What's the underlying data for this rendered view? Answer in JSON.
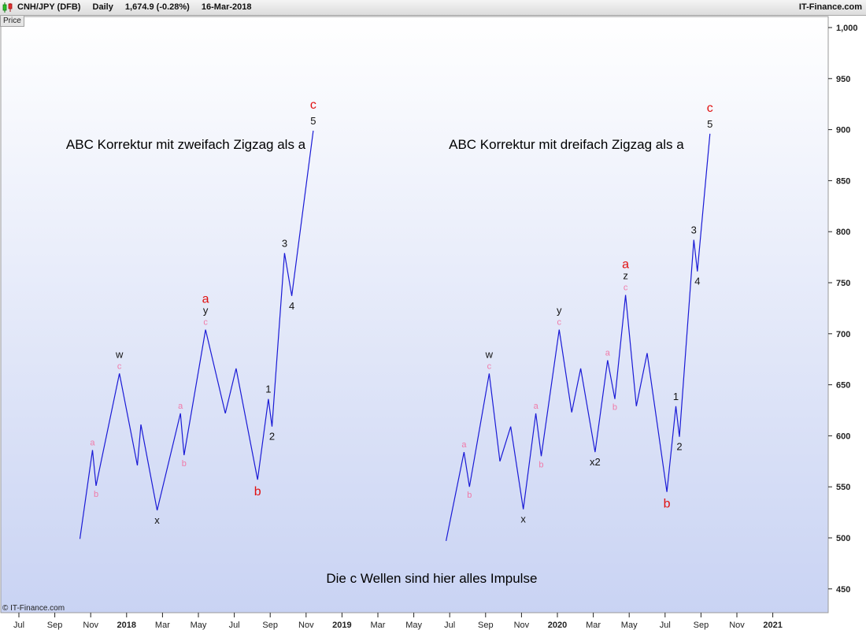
{
  "header": {
    "symbol": "CNH/JPY (DFB)",
    "timeframe": "Daily",
    "last_price": "1,674.9 (-0.28%)",
    "date": "16-Mar-2018",
    "brand": "IT-Finance.com"
  },
  "price_label": "Price",
  "copyright": "© IT-Finance.com",
  "colors": {
    "line": "#1a1ad6",
    "wave_red": "#e01010",
    "wave_pink": "#f07aa8",
    "wave_black": "#111111"
  },
  "chart_data": {
    "type": "line",
    "title": "",
    "xlabel": "",
    "ylabel": "Price",
    "ylim": [
      425,
      1025
    ],
    "y_ticks": [
      {
        "value": 1000,
        "label": "1,000"
      },
      {
        "value": 950,
        "label": "950"
      },
      {
        "value": 900,
        "label": "900"
      },
      {
        "value": 850,
        "label": "850"
      },
      {
        "value": 800,
        "label": "800"
      },
      {
        "value": 750,
        "label": "750"
      },
      {
        "value": 700,
        "label": "700"
      },
      {
        "value": 650,
        "label": "650"
      },
      {
        "value": 600,
        "label": "600"
      },
      {
        "value": 550,
        "label": "550"
      },
      {
        "value": 500,
        "label": "500"
      },
      {
        "value": 450,
        "label": "450"
      }
    ],
    "x_ticks": [
      {
        "month": 0,
        "label": "Jul",
        "bold": false
      },
      {
        "month": 2,
        "label": "Sep",
        "bold": false
      },
      {
        "month": 4,
        "label": "Nov",
        "bold": false
      },
      {
        "month": 6,
        "label": "2018",
        "bold": true
      },
      {
        "month": 8,
        "label": "Mar",
        "bold": false
      },
      {
        "month": 10,
        "label": "May",
        "bold": false
      },
      {
        "month": 12,
        "label": "Jul",
        "bold": false
      },
      {
        "month": 14,
        "label": "Sep",
        "bold": false
      },
      {
        "month": 16,
        "label": "Nov",
        "bold": false
      },
      {
        "month": 18,
        "label": "2019",
        "bold": true
      },
      {
        "month": 20,
        "label": "Mar",
        "bold": false
      },
      {
        "month": 22,
        "label": "May",
        "bold": false
      },
      {
        "month": 24,
        "label": "Jul",
        "bold": false
      },
      {
        "month": 26,
        "label": "Sep",
        "bold": false
      },
      {
        "month": 28,
        "label": "Nov",
        "bold": false
      },
      {
        "month": 30,
        "label": "2020",
        "bold": true
      },
      {
        "month": 32,
        "label": "Mar",
        "bold": false
      },
      {
        "month": 34,
        "label": "May",
        "bold": false
      },
      {
        "month": 36,
        "label": "Jul",
        "bold": false
      },
      {
        "month": 38,
        "label": "Sep",
        "bold": false
      },
      {
        "month": 40,
        "label": "Nov",
        "bold": false
      },
      {
        "month": 42,
        "label": "2021",
        "bold": true
      }
    ],
    "series": [
      {
        "points": [
          [
            3.4,
            499
          ],
          [
            4.1,
            586
          ],
          [
            4.3,
            551
          ],
          [
            5.6,
            661
          ],
          [
            6.6,
            571
          ],
          [
            6.8,
            611
          ],
          [
            7.7,
            527
          ],
          [
            9.0,
            622
          ],
          [
            9.2,
            581
          ],
          [
            10.4,
            704
          ],
          [
            11.5,
            622
          ],
          [
            12.1,
            666
          ],
          [
            13.3,
            557
          ],
          [
            13.9,
            636
          ],
          [
            14.1,
            609
          ],
          [
            14.8,
            779
          ],
          [
            15.2,
            737
          ],
          [
            16.4,
            899
          ]
        ],
        "labels": [
          {
            "text": "a",
            "x": 4.1,
            "y": 586,
            "pos": "above",
            "color": "pink"
          },
          {
            "text": "b",
            "x": 4.3,
            "y": 551,
            "pos": "below",
            "color": "pink"
          },
          {
            "text": "c",
            "x": 5.6,
            "y": 661,
            "pos": "above",
            "color": "pink"
          },
          {
            "text": "w",
            "x": 5.6,
            "y": 661,
            "pos": "above2",
            "color": "black"
          },
          {
            "text": "x",
            "x": 7.7,
            "y": 527,
            "pos": "below",
            "color": "black"
          },
          {
            "text": "a",
            "x": 9.0,
            "y": 622,
            "pos": "above",
            "color": "pink"
          },
          {
            "text": "b",
            "x": 9.2,
            "y": 581,
            "pos": "below",
            "color": "pink"
          },
          {
            "text": "c",
            "x": 10.4,
            "y": 704,
            "pos": "above",
            "color": "pink"
          },
          {
            "text": "y",
            "x": 10.4,
            "y": 704,
            "pos": "above2",
            "color": "black"
          },
          {
            "text": "a",
            "x": 10.4,
            "y": 704,
            "pos": "above3",
            "color": "red"
          },
          {
            "text": "b",
            "x": 13.3,
            "y": 557,
            "pos": "below",
            "color": "red"
          },
          {
            "text": "1",
            "x": 13.9,
            "y": 636,
            "pos": "above",
            "color": "black"
          },
          {
            "text": "2",
            "x": 14.1,
            "y": 609,
            "pos": "below",
            "color": "black"
          },
          {
            "text": "3",
            "x": 14.8,
            "y": 779,
            "pos": "above",
            "color": "black"
          },
          {
            "text": "4",
            "x": 15.2,
            "y": 737,
            "pos": "below",
            "color": "black"
          },
          {
            "text": "5",
            "x": 16.4,
            "y": 899,
            "pos": "above",
            "color": "black"
          },
          {
            "text": "c",
            "x": 16.4,
            "y": 899,
            "pos": "above2",
            "color": "red"
          }
        ]
      },
      {
        "points": [
          [
            23.8,
            497
          ],
          [
            24.8,
            584
          ],
          [
            25.1,
            550
          ],
          [
            26.2,
            661
          ],
          [
            26.8,
            575
          ],
          [
            27.4,
            609
          ],
          [
            28.1,
            528
          ],
          [
            28.8,
            622
          ],
          [
            29.1,
            580
          ],
          [
            30.1,
            704
          ],
          [
            30.8,
            623
          ],
          [
            31.3,
            666
          ],
          [
            32.1,
            584
          ],
          [
            32.8,
            674
          ],
          [
            33.2,
            636
          ],
          [
            33.8,
            738
          ],
          [
            34.4,
            629
          ],
          [
            35.0,
            681
          ],
          [
            36.1,
            545
          ],
          [
            36.6,
            629
          ],
          [
            36.8,
            599
          ],
          [
            37.6,
            792
          ],
          [
            37.8,
            761
          ],
          [
            38.5,
            896
          ]
        ],
        "labels": [
          {
            "text": "a",
            "x": 24.8,
            "y": 584,
            "pos": "above",
            "color": "pink"
          },
          {
            "text": "b",
            "x": 25.1,
            "y": 550,
            "pos": "below",
            "color": "pink"
          },
          {
            "text": "c",
            "x": 26.2,
            "y": 661,
            "pos": "above",
            "color": "pink"
          },
          {
            "text": "w",
            "x": 26.2,
            "y": 661,
            "pos": "above2",
            "color": "black"
          },
          {
            "text": "x",
            "x": 28.1,
            "y": 528,
            "pos": "below",
            "color": "black"
          },
          {
            "text": "a",
            "x": 28.8,
            "y": 622,
            "pos": "above",
            "color": "pink"
          },
          {
            "text": "b",
            "x": 29.1,
            "y": 580,
            "pos": "below",
            "color": "pink"
          },
          {
            "text": "c",
            "x": 30.1,
            "y": 704,
            "pos": "above",
            "color": "pink"
          },
          {
            "text": "y",
            "x": 30.1,
            "y": 704,
            "pos": "above2",
            "color": "black"
          },
          {
            "text": "x2",
            "x": 32.1,
            "y": 584,
            "pos": "below",
            "color": "black"
          },
          {
            "text": "a",
            "x": 32.8,
            "y": 674,
            "pos": "above",
            "color": "pink"
          },
          {
            "text": "b",
            "x": 33.2,
            "y": 636,
            "pos": "below",
            "color": "pink"
          },
          {
            "text": "c",
            "x": 33.8,
            "y": 738,
            "pos": "above",
            "color": "pink"
          },
          {
            "text": "z",
            "x": 33.8,
            "y": 738,
            "pos": "above2",
            "color": "black"
          },
          {
            "text": "a",
            "x": 33.8,
            "y": 738,
            "pos": "above3",
            "color": "red"
          },
          {
            "text": "b",
            "x": 36.1,
            "y": 545,
            "pos": "below",
            "color": "red"
          },
          {
            "text": "1",
            "x": 36.6,
            "y": 629,
            "pos": "above",
            "color": "black"
          },
          {
            "text": "2",
            "x": 36.8,
            "y": 599,
            "pos": "below",
            "color": "black"
          },
          {
            "text": "3",
            "x": 37.6,
            "y": 792,
            "pos": "above",
            "color": "black"
          },
          {
            "text": "4",
            "x": 37.8,
            "y": 761,
            "pos": "below",
            "color": "black"
          },
          {
            "text": "5",
            "x": 38.5,
            "y": 896,
            "pos": "above",
            "color": "black"
          },
          {
            "text": "c",
            "x": 38.5,
            "y": 896,
            "pos": "above2",
            "color": "red"
          }
        ]
      }
    ],
    "annotations": [
      {
        "text": "ABC Korrektur mit zweifach Zigzag als a",
        "x": 9.3,
        "y": 881
      },
      {
        "text": "ABC Korrektur mit dreifach Zigzag als a",
        "x": 30.5,
        "y": 881
      },
      {
        "text": "Die c Wellen sind hier alles Impulse",
        "x": 23.0,
        "y": 456
      }
    ]
  }
}
